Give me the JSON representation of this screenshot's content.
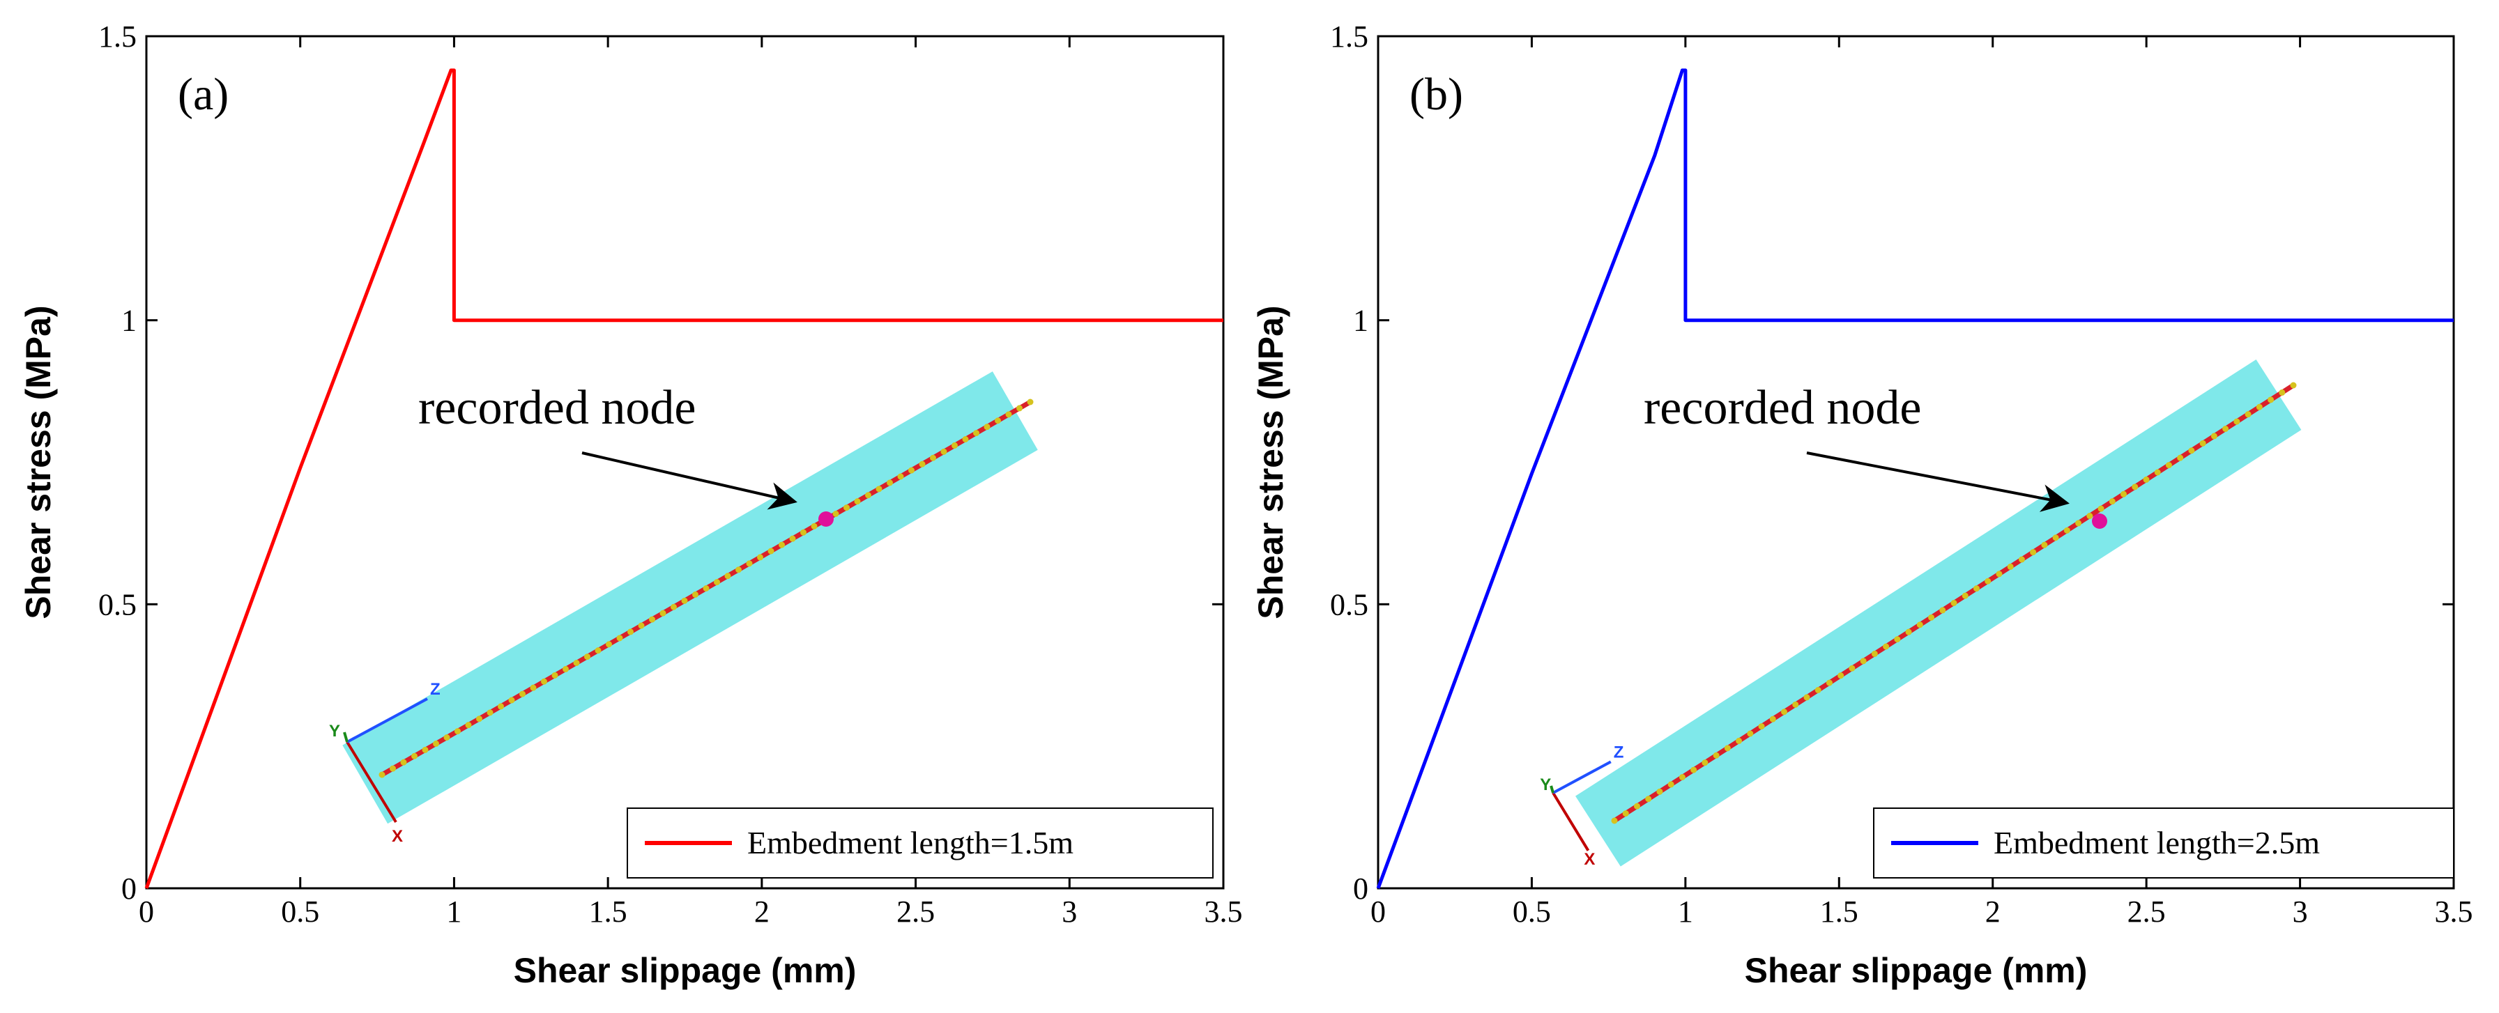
{
  "colors": {
    "axes": "#000000",
    "series_a": "#ff0000",
    "series_b": "#0000ff",
    "inset_fill": "#7fe8ea",
    "bar_red": "#d9202a",
    "bar_dot": "#d6c21e",
    "node": "#e0109a",
    "triad_x": "#c00000",
    "triad_y": "#1a8a1a",
    "triad_z": "#2050ff"
  },
  "chart_data": [
    {
      "type": "line",
      "panel_label": "(a)",
      "xlabel": "Shear slippage (mm)",
      "ylabel": "Shear stress (MPa)",
      "xlim": [
        0,
        3.5
      ],
      "ylim": [
        0,
        1.5
      ],
      "xticks": [
        0,
        0.5,
        1,
        1.5,
        2,
        2.5,
        3,
        3.5
      ],
      "xtick_labels": [
        "0",
        "0.5",
        "1",
        "1.5",
        "2",
        "2.5",
        "3",
        "3.5"
      ],
      "yticks": [
        0,
        0.5,
        1,
        1.5
      ],
      "ytick_labels": [
        "0",
        "0.5",
        "1",
        "1.5"
      ],
      "grid": false,
      "legend_position": "bottom-right",
      "series": [
        {
          "name": "Embedment length=1.5m",
          "color": "#ff0000",
          "x": [
            0,
            0.5,
            0.9,
            0.99,
            1.0,
            1.0,
            3.5
          ],
          "y": [
            0,
            0.74,
            1.31,
            1.44,
            1.44,
            1.0,
            1.0
          ]
        }
      ],
      "annotation": {
        "text": "recorded node",
        "arrow": true
      },
      "inset": {
        "triad_labels": [
          "X",
          "Y",
          "Z"
        ]
      }
    },
    {
      "type": "line",
      "panel_label": "(b)",
      "xlabel": "Shear slippage (mm)",
      "ylabel": "Shear stress (MPa)",
      "xlim": [
        0,
        3.5
      ],
      "ylim": [
        0,
        1.5
      ],
      "xticks": [
        0,
        0.5,
        1,
        1.5,
        2,
        2.5,
        3,
        3.5
      ],
      "xtick_labels": [
        "0",
        "0.5",
        "1",
        "1.5",
        "2",
        "2.5",
        "3",
        "3.5"
      ],
      "yticks": [
        0,
        0.5,
        1,
        1.5
      ],
      "ytick_labels": [
        "0",
        "0.5",
        "1",
        "1.5"
      ],
      "grid": false,
      "legend_position": "bottom-right",
      "series": [
        {
          "name": "Embedment length=2.5m",
          "color": "#0000ff",
          "x": [
            0,
            0.5,
            0.9,
            0.99,
            1.0,
            1.0,
            3.5
          ],
          "y": [
            0,
            0.73,
            1.29,
            1.44,
            1.44,
            1.0,
            1.0
          ]
        }
      ],
      "annotation": {
        "text": "recorded node",
        "arrow": true
      },
      "inset": {
        "triad_labels": [
          "X",
          "Y",
          "Z"
        ]
      }
    }
  ]
}
